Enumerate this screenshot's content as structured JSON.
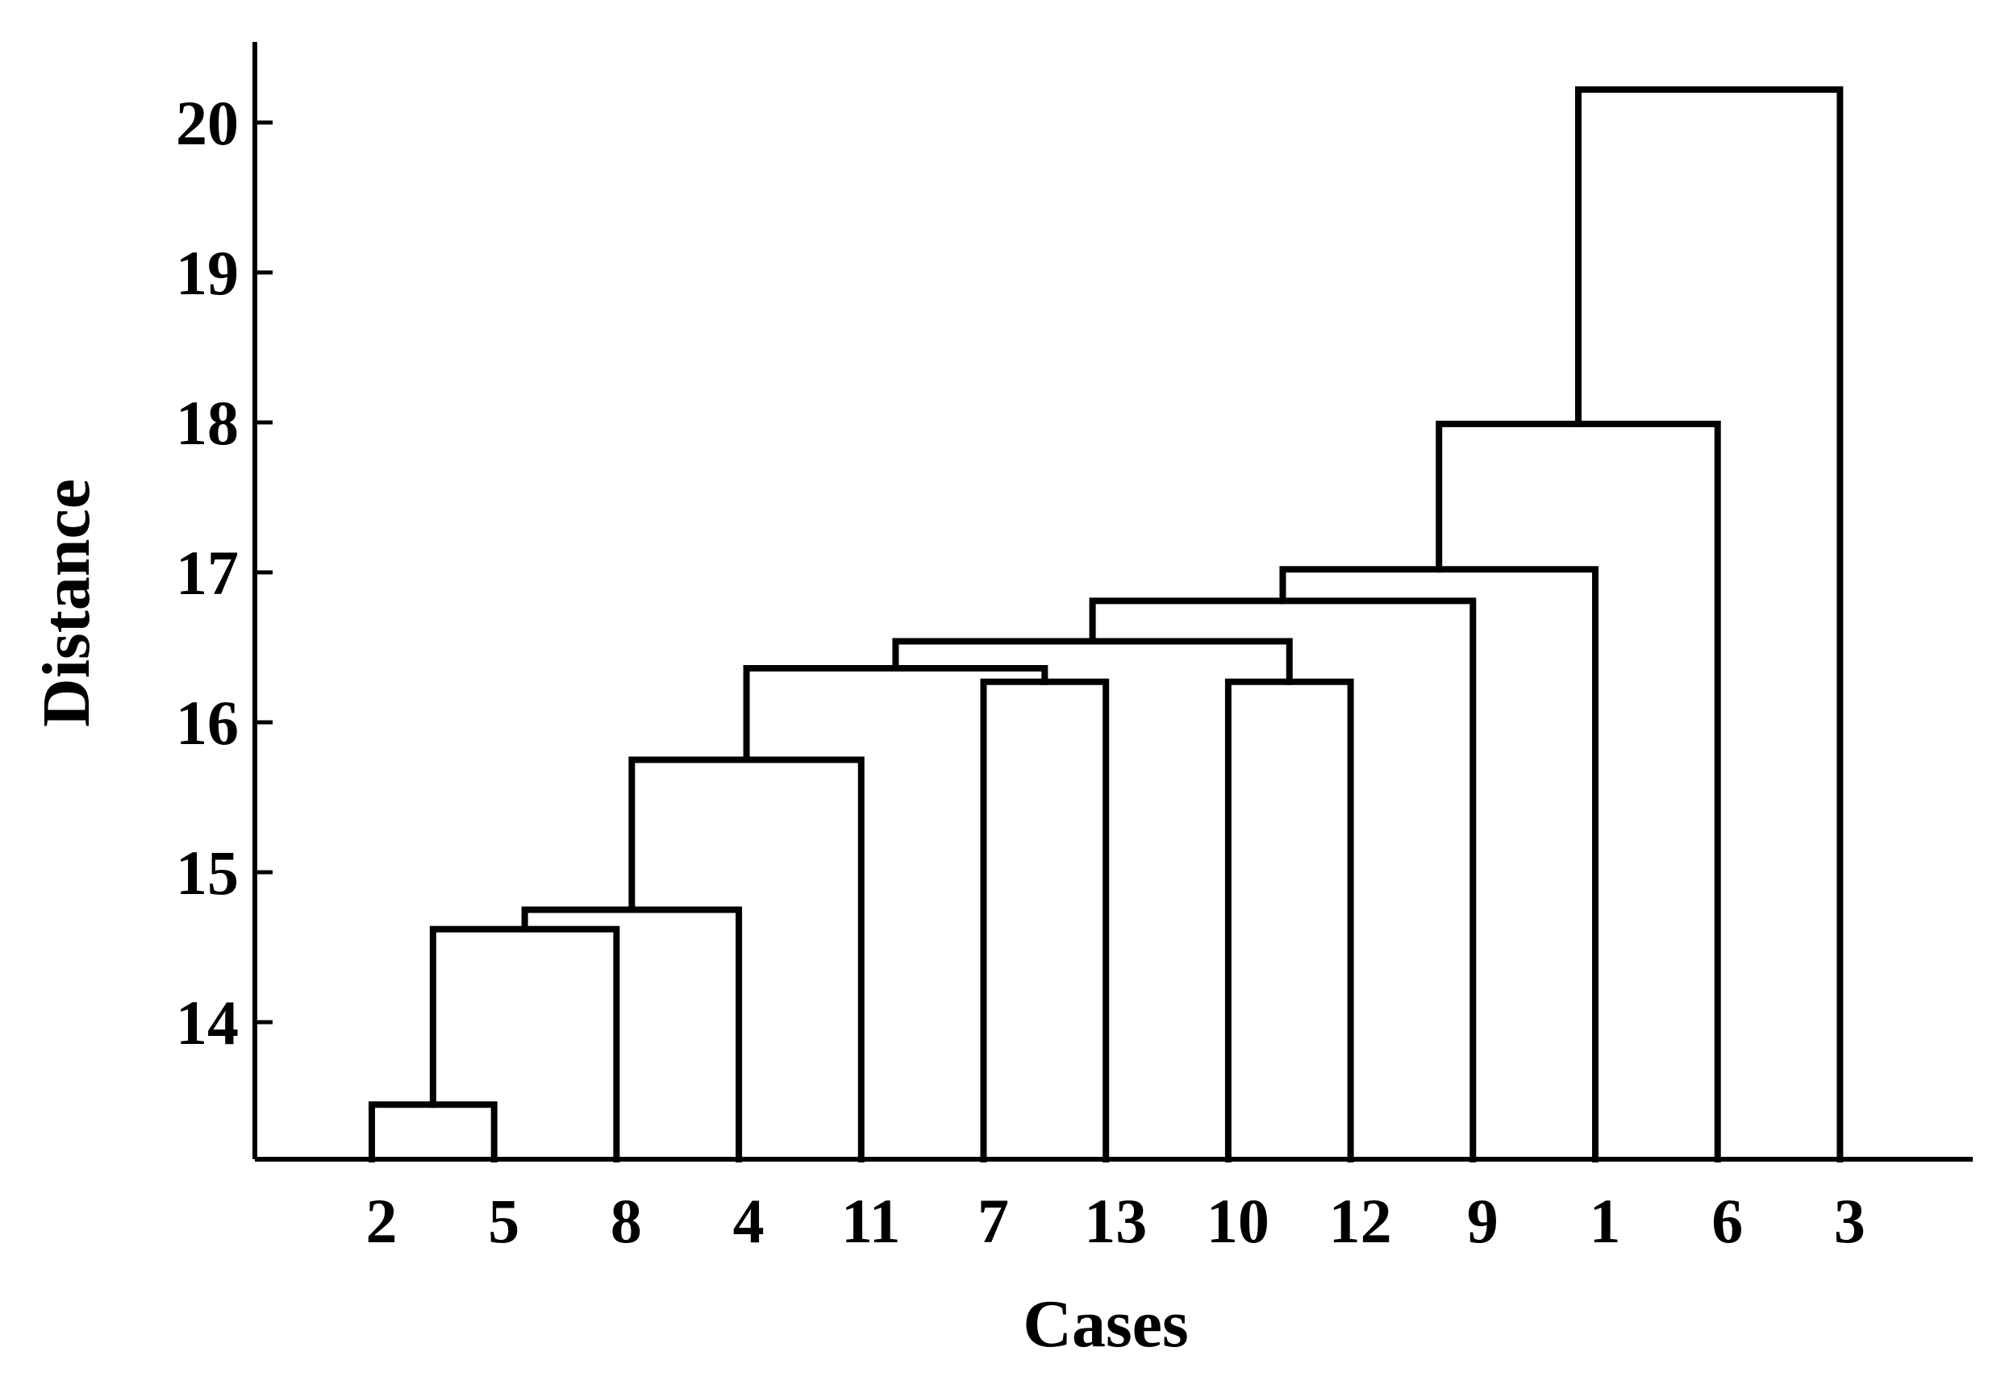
{
  "chart_data": {
    "type": "dendrogram",
    "xlabel": "Cases",
    "ylabel": "Distance",
    "ylim": [
      13.1,
      20.6
    ],
    "yticks": [
      14,
      15,
      16,
      17,
      18,
      19,
      20
    ],
    "leaf_order": [
      "2",
      "5",
      "8",
      "4",
      "11",
      "7",
      "13",
      "10",
      "12",
      "9",
      "1",
      "6",
      "3"
    ],
    "merges": [
      {
        "left": [
          "2"
        ],
        "right": [
          "5"
        ],
        "height": 13.45
      },
      {
        "left": [
          "2",
          "5"
        ],
        "right": [
          "8"
        ],
        "height": 14.62
      },
      {
        "left": [
          "2",
          "5",
          "8"
        ],
        "right": [
          "4"
        ],
        "height": 14.75
      },
      {
        "left": [
          "2",
          "5",
          "8",
          "4"
        ],
        "right": [
          "11"
        ],
        "height": 15.75
      },
      {
        "left": [
          "7"
        ],
        "right": [
          "13"
        ],
        "height": 16.27
      },
      {
        "left": [
          "10"
        ],
        "right": [
          "12"
        ],
        "height": 16.27
      },
      {
        "left": [
          "2",
          "5",
          "8",
          "4",
          "11"
        ],
        "right": [
          "7",
          "13"
        ],
        "height": 16.36
      },
      {
        "left": [
          "2",
          "5",
          "8",
          "4",
          "11",
          "7",
          "13"
        ],
        "right": [
          "10",
          "12"
        ],
        "height": 16.54
      },
      {
        "left": [
          "2",
          "5",
          "8",
          "4",
          "11",
          "7",
          "13",
          "10",
          "12"
        ],
        "right": [
          "9"
        ],
        "height": 16.81
      },
      {
        "left": [
          "2",
          "5",
          "8",
          "4",
          "11",
          "7",
          "13",
          "10",
          "12",
          "9"
        ],
        "right": [
          "1"
        ],
        "height": 17.02
      },
      {
        "left": [
          "2",
          "5",
          "8",
          "4",
          "11",
          "7",
          "13",
          "10",
          "12",
          "9",
          "1"
        ],
        "right": [
          "6"
        ],
        "height": 17.99
      },
      {
        "left": [
          "2",
          "5",
          "8",
          "4",
          "11",
          "7",
          "13",
          "10",
          "12",
          "9",
          "1",
          "6"
        ],
        "right": [
          "3"
        ],
        "height": 20.22
      }
    ],
    "grid": false,
    "legend": "none",
    "line_color": "#000000"
  }
}
